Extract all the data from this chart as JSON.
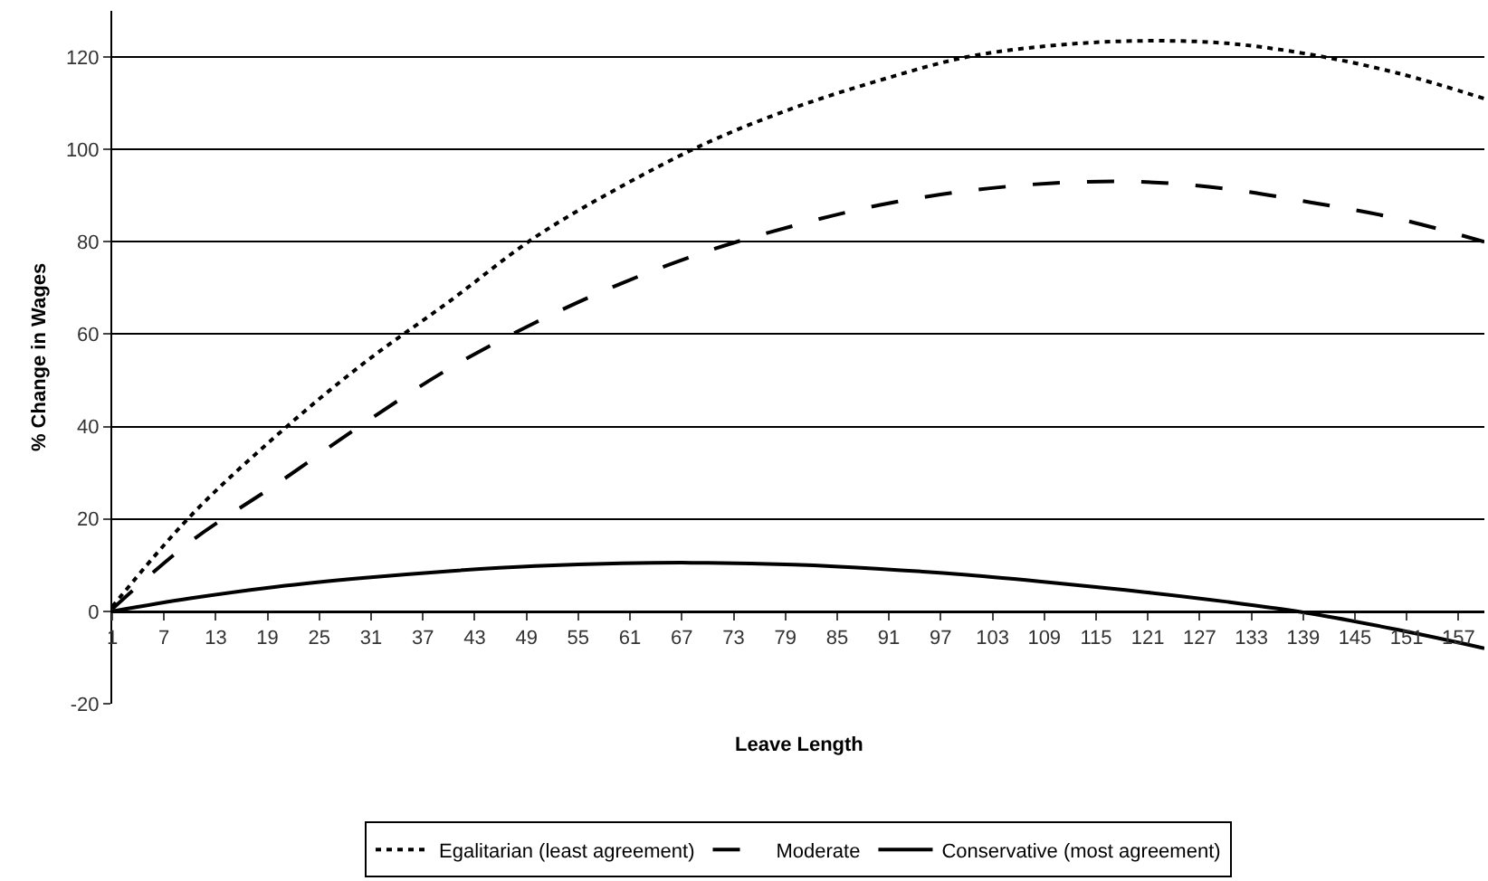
{
  "chart_data": {
    "type": "line",
    "xlabel": "Leave Length",
    "ylabel": "% Change in Wages",
    "x": [
      1,
      10,
      20,
      30,
      40,
      50,
      60,
      70,
      80,
      90,
      100,
      110,
      120,
      130,
      140,
      150,
      160
    ],
    "xlim": [
      1,
      160
    ],
    "xticks": [
      1,
      7,
      13,
      19,
      25,
      31,
      37,
      43,
      49,
      55,
      61,
      67,
      73,
      79,
      85,
      91,
      97,
      103,
      109,
      115,
      121,
      127,
      133,
      139,
      145,
      151,
      157
    ],
    "ylim": [
      -20,
      130
    ],
    "yticks": [
      -20,
      0,
      20,
      40,
      60,
      80,
      100,
      120
    ],
    "grid": "y",
    "legend": "bottom",
    "marker": "none",
    "series": [
      {
        "name": "Egalitarian (least agreement)",
        "color": "#000000",
        "line_style": "dotted",
        "values": [
          1,
          20.5,
          38,
          53.5,
          67,
          81,
          92,
          101.5,
          109,
          115,
          120,
          122.5,
          123.5,
          123,
          120.5,
          116.5,
          111
        ]
      },
      {
        "name": "Moderate",
        "color": "#000000",
        "line_style": "dashed",
        "values": [
          0.5,
          15,
          27.5,
          40.5,
          52.5,
          62.5,
          71,
          78,
          83.5,
          88,
          91,
          92.7,
          93,
          91.5,
          88.5,
          85,
          80
        ]
      },
      {
        "name": "Conservative (most agreement)",
        "color": "#000000",
        "line_style": "solid",
        "values": [
          0,
          2.8,
          5.3,
          7.2,
          8.7,
          9.8,
          10.4,
          10.5,
          10.1,
          9.2,
          7.9,
          6.2,
          4.3,
          2.1,
          -0.5,
          -4,
          -8
        ]
      }
    ]
  }
}
